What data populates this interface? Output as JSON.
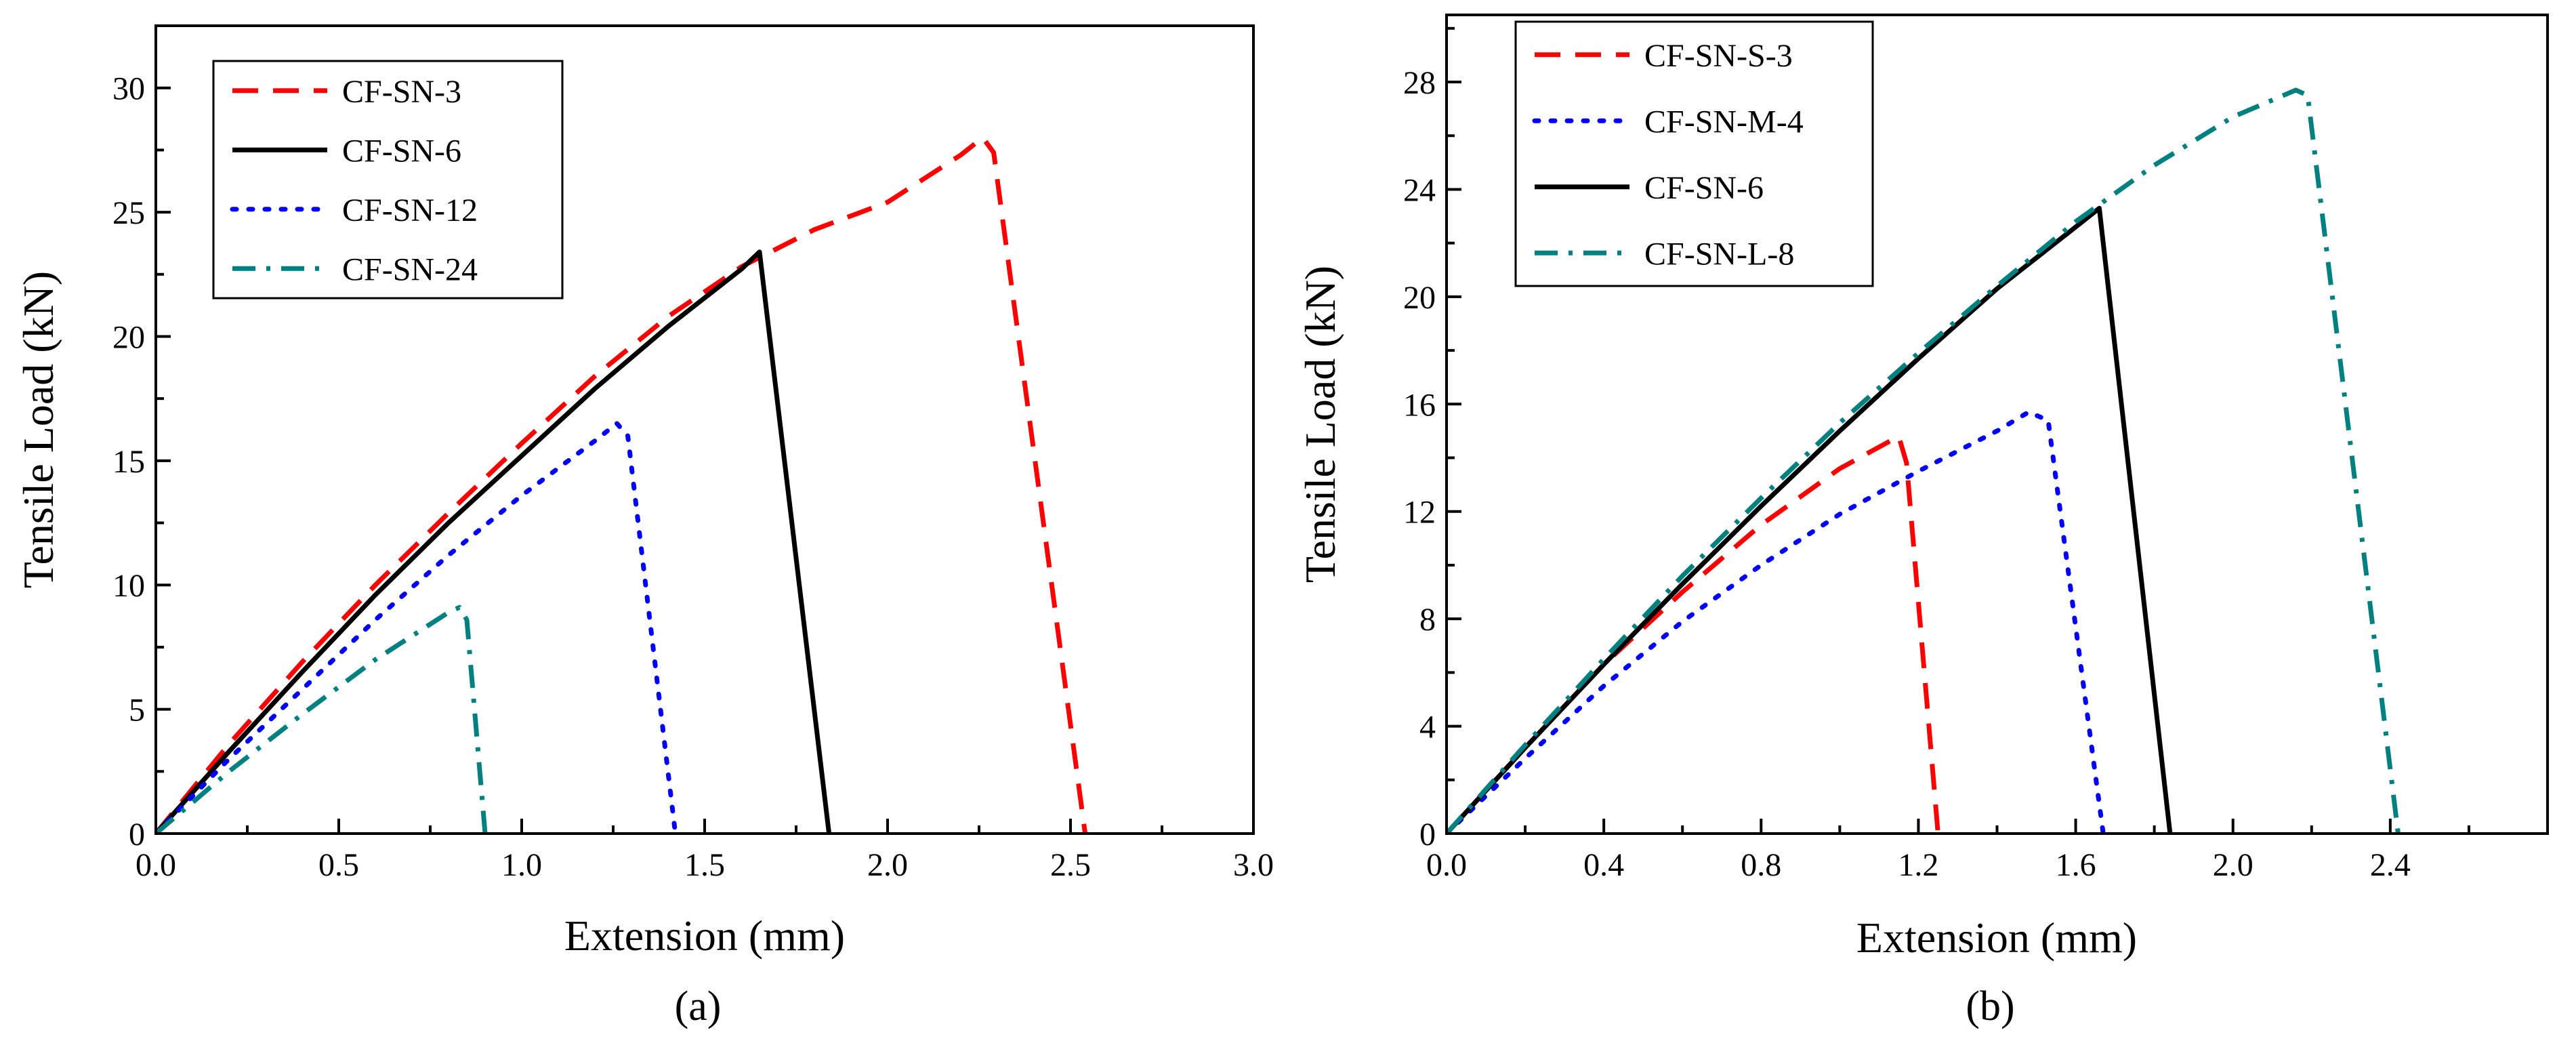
{
  "chart_data": [
    {
      "type": "line",
      "panel_label": "(a)",
      "xlabel": "Extension  (mm)",
      "ylabel": "Tensile Load (kN)",
      "xlim": [
        0,
        3.0
      ],
      "ylim": [
        0,
        32.5
      ],
      "xticks": [
        "0.0",
        "0.5",
        "1.0",
        "1.5",
        "2.0",
        "2.5",
        "3.0"
      ],
      "xtick_values": [
        0,
        0.5,
        1.0,
        1.5,
        2.0,
        2.5,
        3.0
      ],
      "yticks": [
        "0",
        "5",
        "10",
        "15",
        "20",
        "25",
        "30"
      ],
      "ytick_values": [
        0,
        5,
        10,
        15,
        20,
        25,
        30
      ],
      "legend_position": "top-left",
      "series": [
        {
          "name": "CF-SN-3",
          "color": "#ff0000",
          "style": "dashed",
          "points": [
            [
              0,
              0
            ],
            [
              0.2,
              3.6
            ],
            [
              0.4,
              6.9
            ],
            [
              0.6,
              10.0
            ],
            [
              0.8,
              12.9
            ],
            [
              1.0,
              15.7
            ],
            [
              1.2,
              18.4
            ],
            [
              1.4,
              20.8
            ],
            [
              1.6,
              22.8
            ],
            [
              1.8,
              24.3
            ],
            [
              2.0,
              25.4
            ],
            [
              2.2,
              27.3
            ],
            [
              2.26,
              28.0
            ],
            [
              2.29,
              27.4
            ],
            [
              2.54,
              0
            ]
          ]
        },
        {
          "name": "CF-SN-6",
          "color": "#000000",
          "style": "solid",
          "points": [
            [
              0,
              0
            ],
            [
              0.2,
              3.3
            ],
            [
              0.4,
              6.5
            ],
            [
              0.6,
              9.6
            ],
            [
              0.8,
              12.5
            ],
            [
              1.0,
              15.2
            ],
            [
              1.2,
              17.9
            ],
            [
              1.4,
              20.4
            ],
            [
              1.6,
              22.7
            ],
            [
              1.65,
              23.4
            ],
            [
              1.84,
              0
            ]
          ]
        },
        {
          "name": "CF-SN-12",
          "color": "#0000ff",
          "style": "dotted",
          "points": [
            [
              0,
              0
            ],
            [
              0.2,
              3.0
            ],
            [
              0.4,
              5.8
            ],
            [
              0.6,
              8.6
            ],
            [
              0.8,
              11.2
            ],
            [
              1.0,
              13.6
            ],
            [
              1.2,
              15.8
            ],
            [
              1.26,
              16.5
            ],
            [
              1.29,
              16.0
            ],
            [
              1.42,
              0
            ]
          ]
        },
        {
          "name": "CF-SN-24",
          "color": "#008080",
          "style": "dashdot",
          "points": [
            [
              0,
              0
            ],
            [
              0.2,
              2.5
            ],
            [
              0.4,
              4.8
            ],
            [
              0.6,
              7.0
            ],
            [
              0.8,
              8.9
            ],
            [
              0.83,
              9.1
            ],
            [
              0.85,
              8.6
            ],
            [
              0.9,
              0
            ]
          ]
        }
      ]
    },
    {
      "type": "line",
      "panel_label": "(b)",
      "xlabel": "Extension (mm)",
      "ylabel": "Tensile Load (kN)",
      "xlim": [
        0,
        2.8
      ],
      "ylim": [
        0,
        30.5
      ],
      "xticks": [
        "0.0",
        "0.4",
        "0.8",
        "1.2",
        "1.6",
        "2.0",
        "2.4"
      ],
      "xtick_values": [
        0,
        0.4,
        0.8,
        1.2,
        1.6,
        2.0,
        2.4
      ],
      "yticks": [
        "0",
        "4",
        "8",
        "12",
        "16",
        "20",
        "24",
        "28"
      ],
      "ytick_values": [
        0,
        4,
        8,
        12,
        16,
        20,
        24,
        28
      ],
      "legend_position": "top-left",
      "series": [
        {
          "name": "CF-SN-S-3",
          "color": "#ff0000",
          "style": "dashed",
          "points": [
            [
              0,
              0
            ],
            [
              0.2,
              3.2
            ],
            [
              0.4,
              6.3
            ],
            [
              0.6,
              9.0
            ],
            [
              0.8,
              11.5
            ],
            [
              1.0,
              13.6
            ],
            [
              1.15,
              14.8
            ],
            [
              1.17,
              13.8
            ],
            [
              1.25,
              0
            ]
          ]
        },
        {
          "name": "CF-SN-M-4",
          "color": "#0000ff",
          "style": "dotted",
          "points": [
            [
              0,
              0
            ],
            [
              0.2,
              2.8
            ],
            [
              0.4,
              5.5
            ],
            [
              0.6,
              7.9
            ],
            [
              0.8,
              10.0
            ],
            [
              1.0,
              11.9
            ],
            [
              1.2,
              13.5
            ],
            [
              1.4,
              15.0
            ],
            [
              1.48,
              15.7
            ],
            [
              1.53,
              15.4
            ],
            [
              1.67,
              0
            ]
          ]
        },
        {
          "name": "CF-SN-6",
          "color": "#000000",
          "style": "solid",
          "points": [
            [
              0,
              0
            ],
            [
              0.2,
              3.2
            ],
            [
              0.4,
              6.3
            ],
            [
              0.6,
              9.3
            ],
            [
              0.8,
              12.2
            ],
            [
              1.0,
              15.0
            ],
            [
              1.2,
              17.7
            ],
            [
              1.4,
              20.3
            ],
            [
              1.6,
              22.6
            ],
            [
              1.66,
              23.3
            ],
            [
              1.84,
              0
            ]
          ]
        },
        {
          "name": "CF-SN-L-8",
          "color": "#008080",
          "style": "dashdot",
          "points": [
            [
              0,
              0
            ],
            [
              0.2,
              3.3
            ],
            [
              0.4,
              6.5
            ],
            [
              0.6,
              9.6
            ],
            [
              0.8,
              12.5
            ],
            [
              1.0,
              15.3
            ],
            [
              1.2,
              17.9
            ],
            [
              1.4,
              20.4
            ],
            [
              1.6,
              22.8
            ],
            [
              1.8,
              24.9
            ],
            [
              2.0,
              26.7
            ],
            [
              2.16,
              27.7
            ],
            [
              2.19,
              27.5
            ],
            [
              2.42,
              0
            ]
          ]
        }
      ]
    }
  ]
}
